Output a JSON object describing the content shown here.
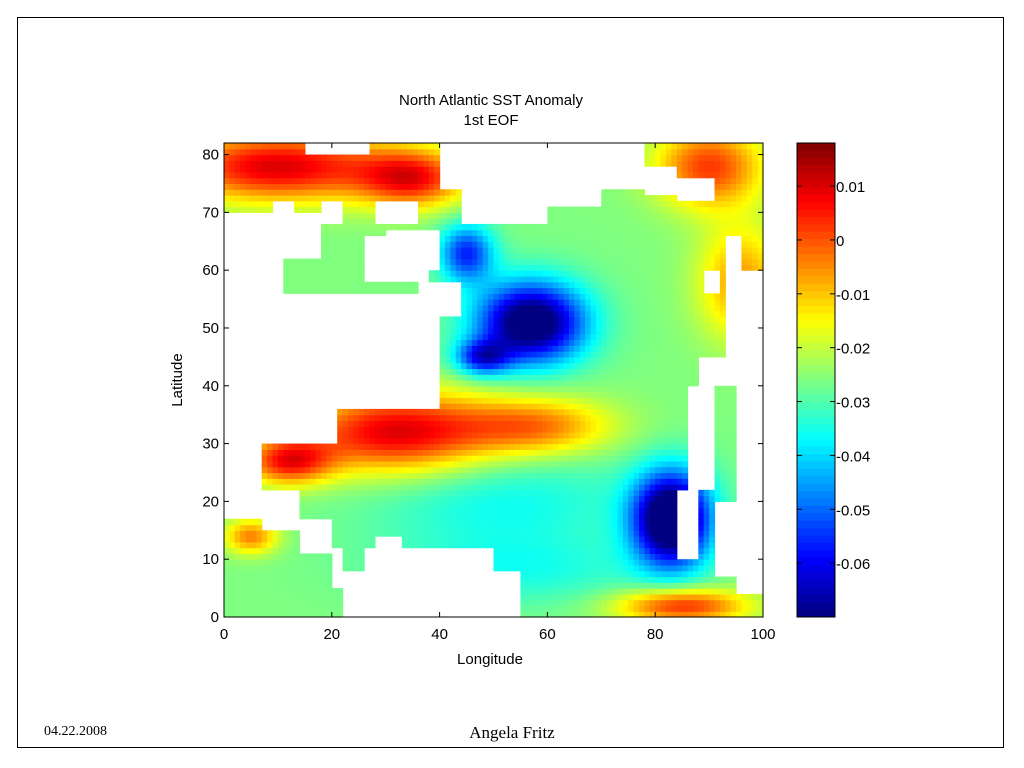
{
  "slide": {
    "date": "04.22.2008",
    "author": "Angela Fritz"
  },
  "chart_data": {
    "type": "heatmap",
    "title": "North Atlantic SST Anomaly",
    "subtitle": "1st EOF",
    "xlabel": "Longitude",
    "ylabel": "Latitude",
    "xlim": [
      0,
      100
    ],
    "ylim": [
      0,
      82
    ],
    "x_ticks": [
      0,
      20,
      40,
      60,
      80,
      100
    ],
    "y_ticks": [
      0,
      10,
      20,
      30,
      40,
      50,
      60,
      70,
      80
    ],
    "colormap": "jet",
    "color_range": [
      -0.07,
      0.018
    ],
    "colorbar_ticks": [
      0.01,
      0,
      -0.01,
      -0.02,
      -0.03,
      -0.04,
      -0.05,
      -0.06
    ],
    "colorbar_tick_labels": [
      "0.01",
      "0",
      "-0.01",
      "-0.02",
      "-0.03",
      "-0.04",
      "-0.05",
      "-0.06"
    ],
    "land_color": "#ffffff",
    "anomaly_field": {
      "description_units": "EOF loading",
      "minima": [
        {
          "lon": 57,
          "lat": 51,
          "value": -0.062
        },
        {
          "lon": 83,
          "lat": 17,
          "value": -0.066
        },
        {
          "lon": 48,
          "lat": 45,
          "value": -0.052
        },
        {
          "lon": 45,
          "lat": 63,
          "value": -0.045
        }
      ],
      "maxima": [
        {
          "lon": 12,
          "lat": 27,
          "value": 0.016
        },
        {
          "lon": 32,
          "lat": 32,
          "value": 0.006
        },
        {
          "lon": 10,
          "lat": 78,
          "value": 0.004
        },
        {
          "lon": 90,
          "lat": 78,
          "value": 0.003
        },
        {
          "lon": 85,
          "lat": 2,
          "value": 0.001
        }
      ]
    }
  }
}
